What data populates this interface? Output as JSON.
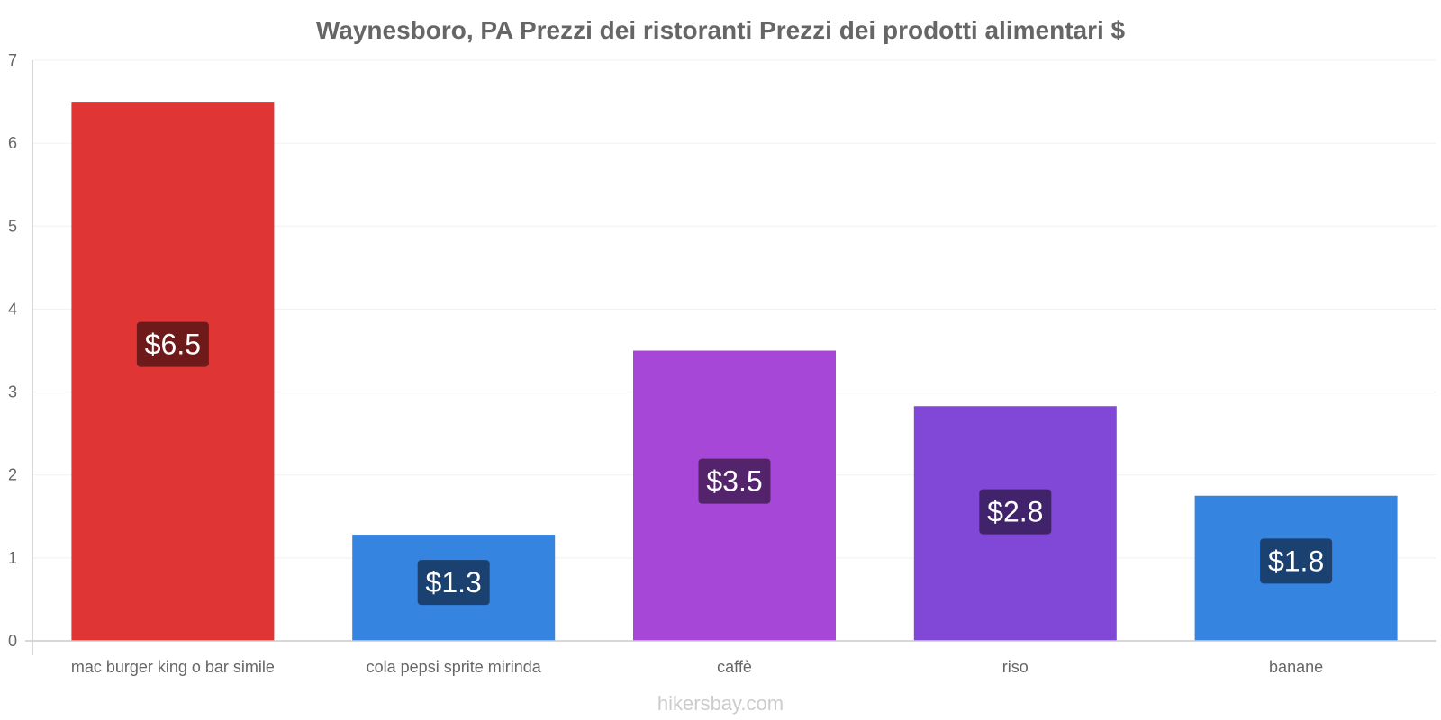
{
  "chart_data": {
    "type": "bar",
    "title": "Waynesboro, PA Prezzi dei ristoranti Prezzi dei prodotti alimentari $",
    "xlabel": "",
    "ylabel": "",
    "ylim": [
      0,
      7
    ],
    "yticks": [
      "0",
      "1",
      "2",
      "3",
      "4",
      "5",
      "6",
      "7"
    ],
    "categories": [
      "mac burger king o bar simile",
      "cola pepsi sprite mirinda",
      "caffè",
      "riso",
      "banane"
    ],
    "values": [
      6.5,
      1.28,
      3.5,
      2.83,
      1.75
    ],
    "labels": [
      "$6.5",
      "$1.3",
      "$3.5",
      "$2.8",
      "$1.8"
    ],
    "colors": [
      "#e03535",
      "#3584e0",
      "#a647d8",
      "#8148d8",
      "#3584e0"
    ],
    "label_box_colors": [
      "#6f1a1a",
      "#1b4170",
      "#53236b",
      "#40236b",
      "#1b4170"
    ],
    "grid": true
  },
  "watermark": "hikersbay.com"
}
